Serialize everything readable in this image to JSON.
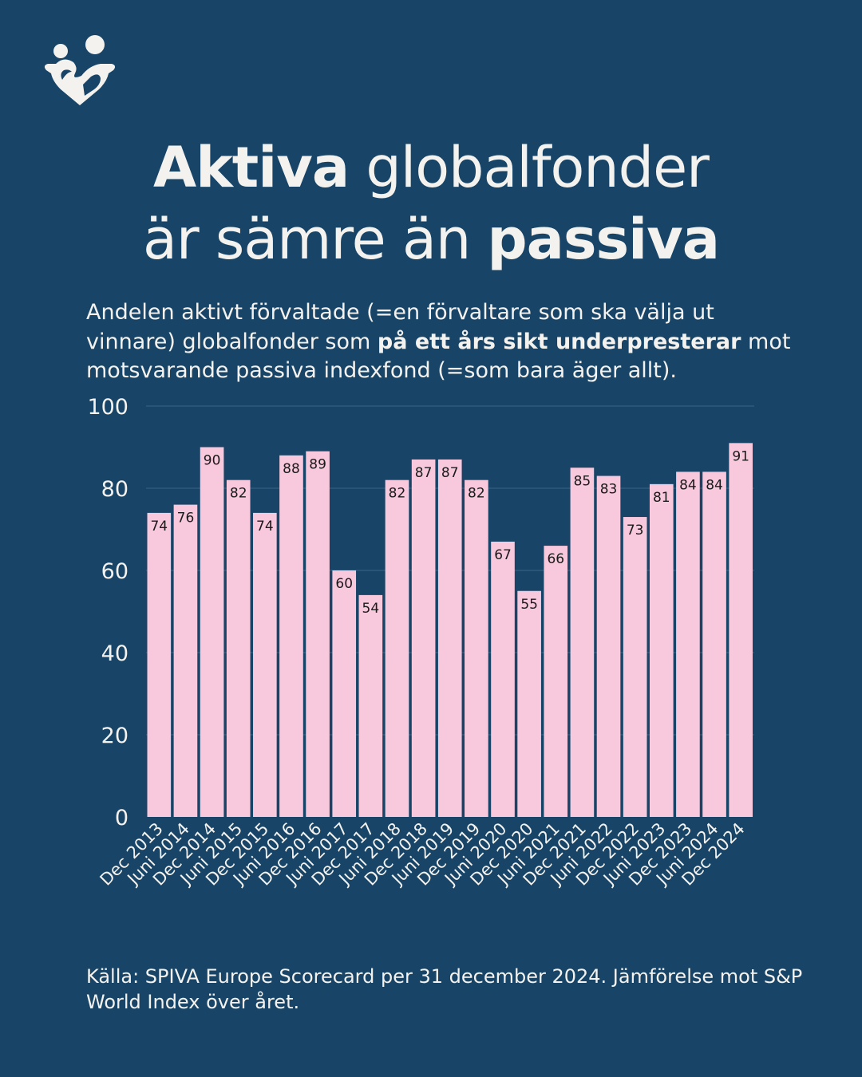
{
  "logo": {
    "icon": "heart-two-people-logo",
    "color": "#f4f2ee"
  },
  "title": {
    "bold1": "Aktiva",
    "rest1": " globalfonder",
    "line2": "är sämre än ",
    "bold2": "passiva"
  },
  "subtitle": {
    "part1": "Andelen aktivt förvaltade (=en förvaltare som ska välja ut vinnare) globalfonder som ",
    "bold": "på ett års sikt underpresterar",
    "part2": " mot motsvarande passiva indexfond (=som bara äger allt)."
  },
  "footer": "Källa: SPIVA Europe Scorecard per 31 december 2024. Jämförelse mot S&P World Index över året.",
  "colors": {
    "background": "#184567",
    "bar": "#f8c8dc",
    "text": "#f4f2ee"
  },
  "chart_data": {
    "type": "bar",
    "categories": [
      "Dec 2013",
      "Juni 2014",
      "Dec 2014",
      "Juni 2015",
      "Dec 2015",
      "Juni 2016",
      "Dec 2016",
      "Juni 2017",
      "Dec 2017",
      "Juni 2018",
      "Dec 2018",
      "Juni 2019",
      "Dec 2019",
      "Juni 2020",
      "Dec 2020",
      "Juni 2021",
      "Dec 2021",
      "Juni 2022",
      "Dec 2022",
      "Juni 2023",
      "Dec 2023",
      "Juni 2024",
      "Dec 2024"
    ],
    "values": [
      74,
      76,
      90,
      82,
      74,
      88,
      89,
      60,
      54,
      82,
      87,
      87,
      82,
      67,
      55,
      66,
      85,
      83,
      73,
      81,
      84,
      84,
      91
    ],
    "yticks": [
      0,
      20,
      40,
      60,
      80,
      100
    ],
    "ylim": [
      0,
      100
    ],
    "grid": true,
    "data_labels": true
  }
}
